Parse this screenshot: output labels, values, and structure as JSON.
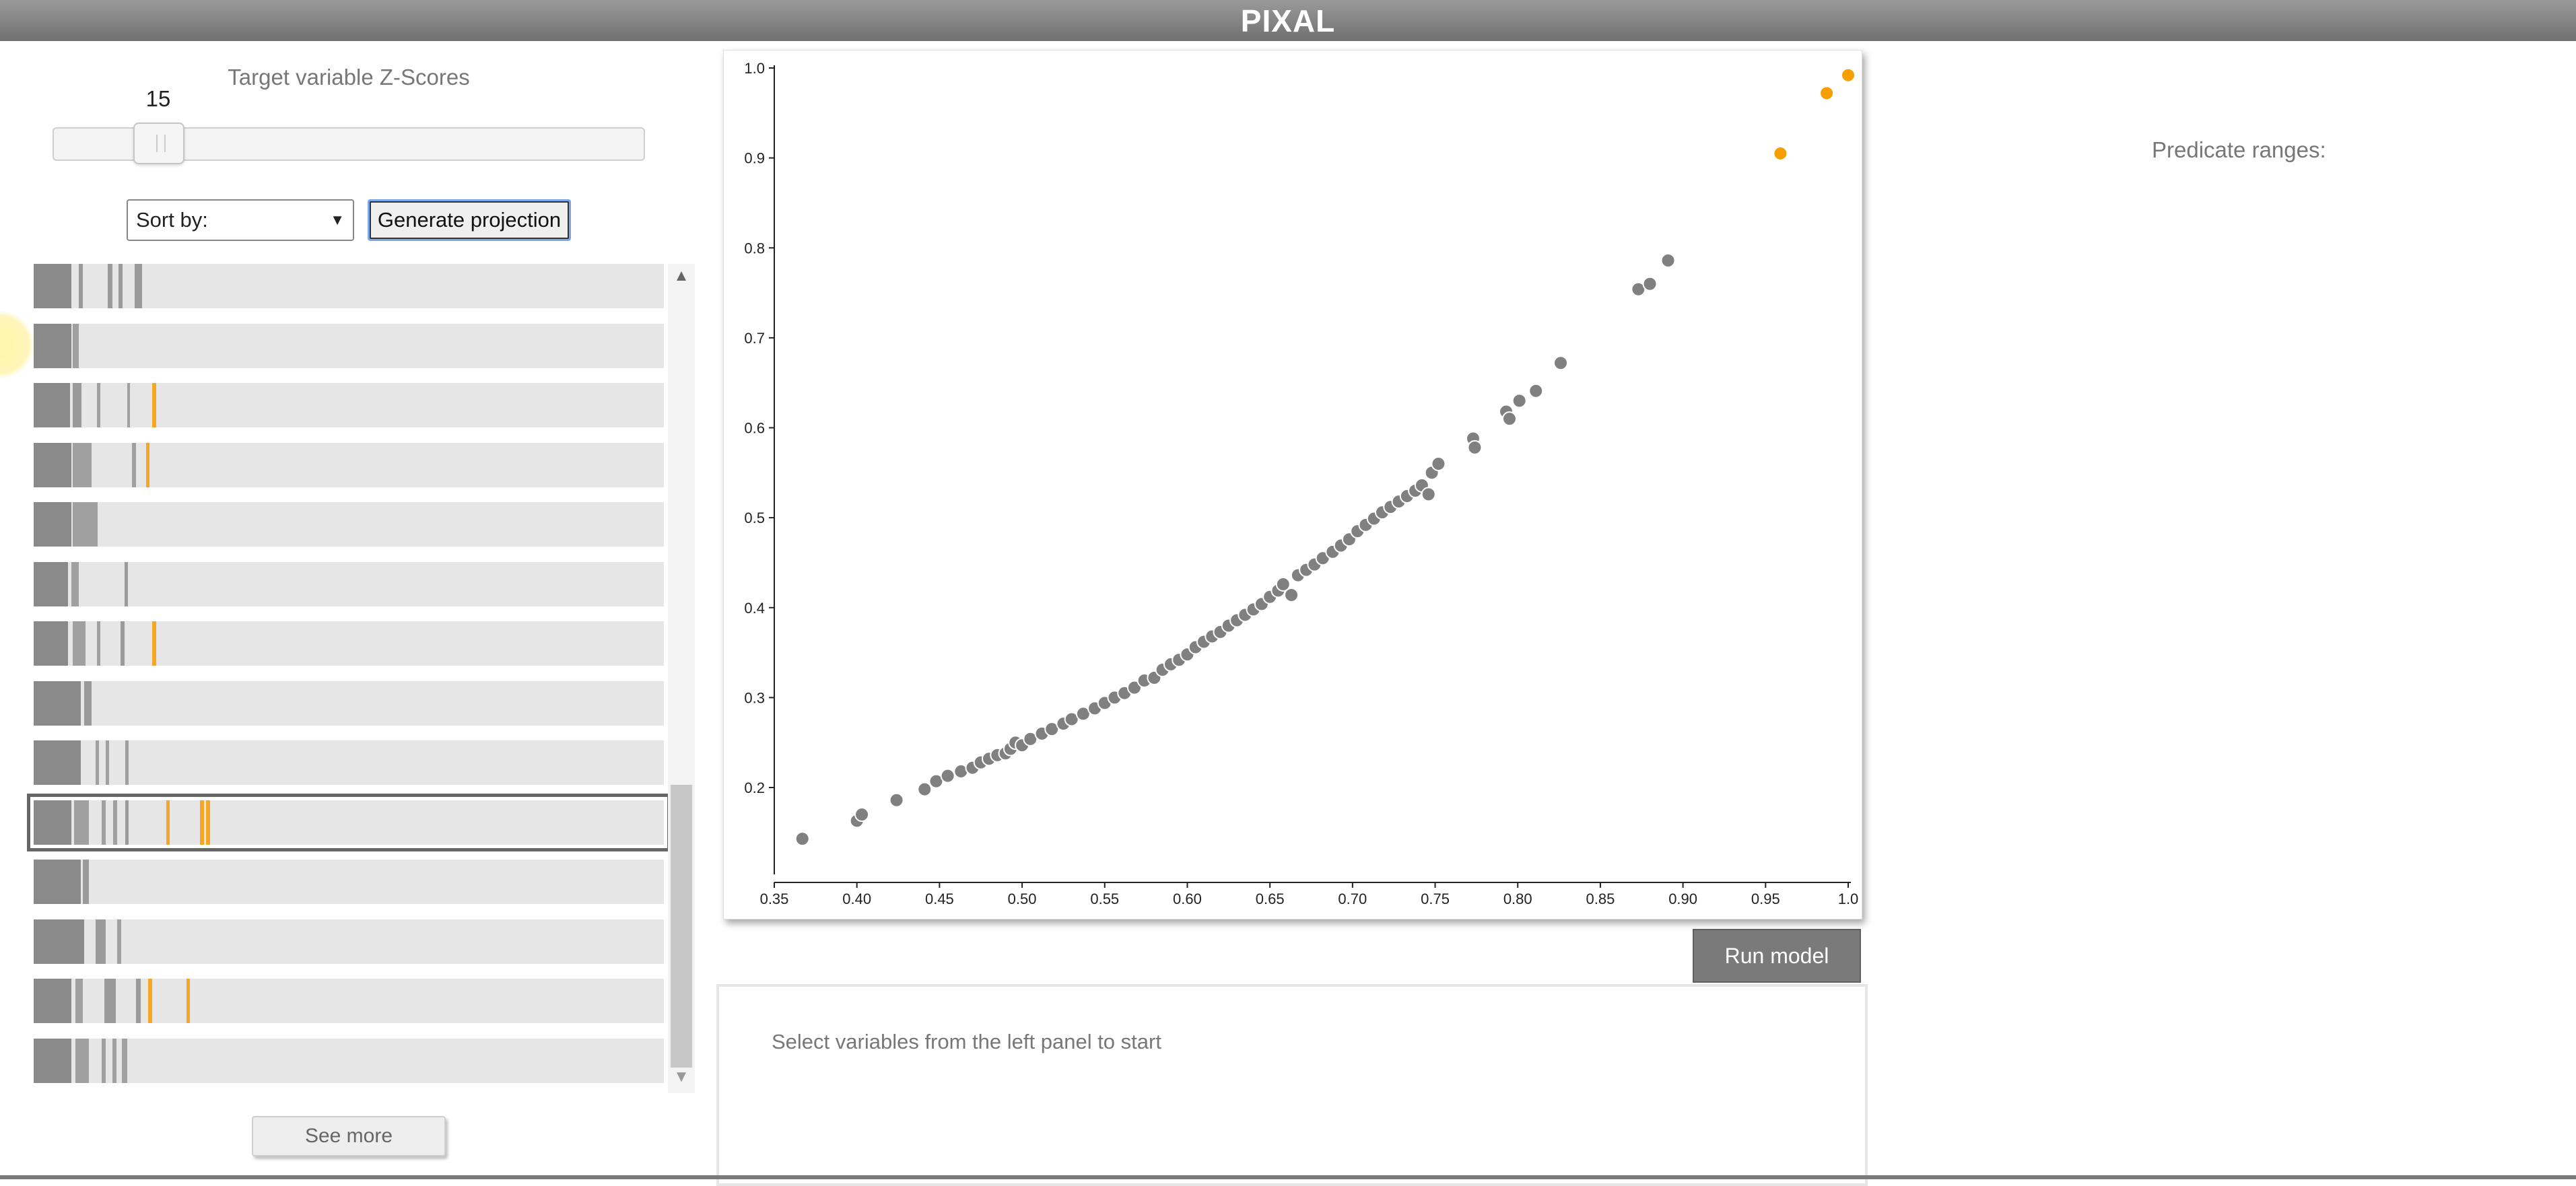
{
  "app": {
    "title": "PIXAL"
  },
  "left_panel": {
    "zscore_label": "Target variable Z-Scores",
    "slider_value": "15",
    "slider_fraction": 0.1,
    "sort_select": {
      "selected": "Sort by:"
    },
    "generate_button": "Generate projection",
    "see_more_button": "See more",
    "variable_rows": [
      {
        "selected": false,
        "marks": [
          {
            "p": 0.0,
            "w": 0.06,
            "c": "#8a8a8a"
          },
          {
            "p": 0.072,
            "w": 0.006,
            "c": "#9a9a9a"
          },
          {
            "p": 0.118,
            "w": 0.007,
            "c": "#9a9a9a"
          },
          {
            "p": 0.135,
            "w": 0.006,
            "c": "#9a9a9a"
          },
          {
            "p": 0.16,
            "w": 0.012,
            "c": "#9a9a9a"
          }
        ]
      },
      {
        "selected": false,
        "marks": [
          {
            "p": 0.0,
            "w": 0.06,
            "c": "#8a8a8a"
          },
          {
            "p": 0.062,
            "w": 0.01,
            "c": "#a0a0a0"
          }
        ]
      },
      {
        "selected": false,
        "marks": [
          {
            "p": 0.0,
            "w": 0.058,
            "c": "#8a8a8a"
          },
          {
            "p": 0.062,
            "w": 0.014,
            "c": "#9a9a9a"
          },
          {
            "p": 0.1,
            "w": 0.006,
            "c": "#a0a0a0"
          },
          {
            "p": 0.148,
            "w": 0.005,
            "c": "#a0a0a0"
          },
          {
            "p": 0.188,
            "w": 0.006,
            "c": "#f5a623"
          }
        ]
      },
      {
        "selected": false,
        "marks": [
          {
            "p": 0.0,
            "w": 0.06,
            "c": "#8a8a8a"
          },
          {
            "p": 0.062,
            "w": 0.03,
            "c": "#a0a0a0"
          },
          {
            "p": 0.156,
            "w": 0.006,
            "c": "#a0a0a0"
          },
          {
            "p": 0.178,
            "w": 0.006,
            "c": "#f5a623"
          }
        ]
      },
      {
        "selected": false,
        "marks": [
          {
            "p": 0.0,
            "w": 0.06,
            "c": "#8a8a8a"
          },
          {
            "p": 0.062,
            "w": 0.04,
            "c": "#a0a0a0"
          }
        ]
      },
      {
        "selected": false,
        "marks": [
          {
            "p": 0.0,
            "w": 0.055,
            "c": "#8a8a8a"
          },
          {
            "p": 0.06,
            "w": 0.012,
            "c": "#a0a0a0"
          },
          {
            "p": 0.144,
            "w": 0.006,
            "c": "#9a9a9a"
          }
        ]
      },
      {
        "selected": false,
        "marks": [
          {
            "p": 0.0,
            "w": 0.055,
            "c": "#8a8a8a"
          },
          {
            "p": 0.062,
            "w": 0.02,
            "c": "#a0a0a0"
          },
          {
            "p": 0.1,
            "w": 0.006,
            "c": "#a0a0a0"
          },
          {
            "p": 0.138,
            "w": 0.006,
            "c": "#9a9a9a"
          },
          {
            "p": 0.188,
            "w": 0.006,
            "c": "#f5a623"
          }
        ]
      },
      {
        "selected": false,
        "marks": [
          {
            "p": 0.0,
            "w": 0.075,
            "c": "#8a8a8a"
          },
          {
            "p": 0.08,
            "w": 0.012,
            "c": "#9a9a9a"
          }
        ]
      },
      {
        "selected": false,
        "marks": [
          {
            "p": 0.0,
            "w": 0.075,
            "c": "#8a8a8a"
          },
          {
            "p": 0.098,
            "w": 0.006,
            "c": "#a0a0a0"
          },
          {
            "p": 0.114,
            "w": 0.006,
            "c": "#a0a0a0"
          },
          {
            "p": 0.145,
            "w": 0.006,
            "c": "#a0a0a0"
          }
        ]
      },
      {
        "selected": true,
        "marks": [
          {
            "p": 0.0,
            "w": 0.06,
            "c": "#8a8a8a"
          },
          {
            "p": 0.064,
            "w": 0.024,
            "c": "#a0a0a0"
          },
          {
            "p": 0.108,
            "w": 0.006,
            "c": "#a0a0a0"
          },
          {
            "p": 0.126,
            "w": 0.006,
            "c": "#a0a0a0"
          },
          {
            "p": 0.145,
            "w": 0.006,
            "c": "#9a9a9a"
          },
          {
            "p": 0.21,
            "w": 0.006,
            "c": "#f5a623"
          },
          {
            "p": 0.264,
            "w": 0.006,
            "c": "#f5a623"
          },
          {
            "p": 0.274,
            "w": 0.006,
            "c": "#f5a623"
          }
        ]
      },
      {
        "selected": false,
        "marks": [
          {
            "p": 0.0,
            "w": 0.075,
            "c": "#8a8a8a"
          },
          {
            "p": 0.078,
            "w": 0.01,
            "c": "#9a9a9a"
          }
        ]
      },
      {
        "selected": false,
        "marks": [
          {
            "p": 0.0,
            "w": 0.08,
            "c": "#8a8a8a"
          },
          {
            "p": 0.098,
            "w": 0.016,
            "c": "#9a9a9a"
          },
          {
            "p": 0.133,
            "w": 0.006,
            "c": "#a0a0a0"
          }
        ]
      },
      {
        "selected": false,
        "marks": [
          {
            "p": 0.0,
            "w": 0.06,
            "c": "#8a8a8a"
          },
          {
            "p": 0.066,
            "w": 0.012,
            "c": "#a0a0a0"
          },
          {
            "p": 0.112,
            "w": 0.018,
            "c": "#9a9a9a"
          },
          {
            "p": 0.162,
            "w": 0.008,
            "c": "#9a9a9a"
          },
          {
            "p": 0.182,
            "w": 0.006,
            "c": "#f5a623"
          },
          {
            "p": 0.242,
            "w": 0.006,
            "c": "#f5a623"
          }
        ]
      },
      {
        "selected": false,
        "marks": [
          {
            "p": 0.0,
            "w": 0.06,
            "c": "#8a8a8a"
          },
          {
            "p": 0.066,
            "w": 0.022,
            "c": "#a0a0a0"
          },
          {
            "p": 0.108,
            "w": 0.006,
            "c": "#a0a0a0"
          },
          {
            "p": 0.125,
            "w": 0.006,
            "c": "#a0a0a0"
          },
          {
            "p": 0.14,
            "w": 0.008,
            "c": "#a0a0a0"
          }
        ]
      }
    ]
  },
  "center_panel": {
    "run_model_button": "Run model",
    "info_message": "Select variables from the left panel to start"
  },
  "right_panel": {
    "predicate_label": "Predicate ranges:"
  },
  "colors": {
    "normal_point": "#808080",
    "highlight_point": "#f5a000",
    "row_background": "#e6e6e6"
  },
  "chart_data": {
    "type": "scatter",
    "title": "",
    "xlabel": "",
    "ylabel": "",
    "xlim": [
      0.35,
      1.0
    ],
    "ylim": [
      0.1,
      1.0
    ],
    "x_ticks": [
      "0.35",
      "0.40",
      "0.45",
      "0.50",
      "0.55",
      "0.60",
      "0.65",
      "0.70",
      "0.75",
      "0.80",
      "0.85",
      "0.90",
      "0.95",
      "1.0"
    ],
    "y_ticks": [
      "0.2",
      "0.3",
      "0.4",
      "0.5",
      "0.6",
      "0.7",
      "0.8",
      "0.9",
      "1.0"
    ],
    "grid": false,
    "series": [
      {
        "color": "#808080",
        "points": [
          [
            0.367,
            0.143
          ],
          [
            0.4,
            0.163
          ],
          [
            0.403,
            0.17
          ],
          [
            0.424,
            0.186
          ],
          [
            0.441,
            0.198
          ],
          [
            0.448,
            0.207
          ],
          [
            0.455,
            0.213
          ],
          [
            0.463,
            0.218
          ],
          [
            0.47,
            0.222
          ],
          [
            0.475,
            0.228
          ],
          [
            0.48,
            0.232
          ],
          [
            0.485,
            0.236
          ],
          [
            0.49,
            0.238
          ],
          [
            0.493,
            0.243
          ],
          [
            0.496,
            0.25
          ],
          [
            0.5,
            0.247
          ],
          [
            0.505,
            0.254
          ],
          [
            0.512,
            0.26
          ],
          [
            0.518,
            0.265
          ],
          [
            0.525,
            0.271
          ],
          [
            0.53,
            0.276
          ],
          [
            0.537,
            0.282
          ],
          [
            0.544,
            0.288
          ],
          [
            0.55,
            0.294
          ],
          [
            0.556,
            0.3
          ],
          [
            0.562,
            0.305
          ],
          [
            0.568,
            0.311
          ],
          [
            0.574,
            0.319
          ],
          [
            0.58,
            0.322
          ],
          [
            0.585,
            0.331
          ],
          [
            0.59,
            0.337
          ],
          [
            0.595,
            0.342
          ],
          [
            0.6,
            0.348
          ],
          [
            0.605,
            0.356
          ],
          [
            0.61,
            0.362
          ],
          [
            0.615,
            0.368
          ],
          [
            0.62,
            0.373
          ],
          [
            0.625,
            0.38
          ],
          [
            0.63,
            0.386
          ],
          [
            0.635,
            0.392
          ],
          [
            0.64,
            0.398
          ],
          [
            0.645,
            0.404
          ],
          [
            0.65,
            0.412
          ],
          [
            0.655,
            0.419
          ],
          [
            0.658,
            0.426
          ],
          [
            0.663,
            0.414
          ],
          [
            0.667,
            0.436
          ],
          [
            0.672,
            0.442
          ],
          [
            0.677,
            0.448
          ],
          [
            0.682,
            0.455
          ],
          [
            0.688,
            0.462
          ],
          [
            0.693,
            0.469
          ],
          [
            0.698,
            0.476
          ],
          [
            0.703,
            0.485
          ],
          [
            0.708,
            0.492
          ],
          [
            0.713,
            0.499
          ],
          [
            0.718,
            0.506
          ],
          [
            0.723,
            0.512
          ],
          [
            0.728,
            0.518
          ],
          [
            0.733,
            0.524
          ],
          [
            0.738,
            0.53
          ],
          [
            0.742,
            0.536
          ],
          [
            0.746,
            0.526
          ],
          [
            0.748,
            0.55
          ],
          [
            0.752,
            0.56
          ],
          [
            0.773,
            0.588
          ],
          [
            0.774,
            0.578
          ],
          [
            0.793,
            0.618
          ],
          [
            0.795,
            0.61
          ],
          [
            0.801,
            0.63
          ],
          [
            0.811,
            0.641
          ],
          [
            0.826,
            0.672
          ],
          [
            0.873,
            0.754
          ],
          [
            0.88,
            0.76
          ],
          [
            0.891,
            0.786
          ]
        ]
      },
      {
        "color": "#f5a000",
        "points": [
          [
            0.959,
            0.905
          ],
          [
            0.987,
            0.972
          ],
          [
            1.0,
            0.992
          ]
        ]
      }
    ]
  }
}
